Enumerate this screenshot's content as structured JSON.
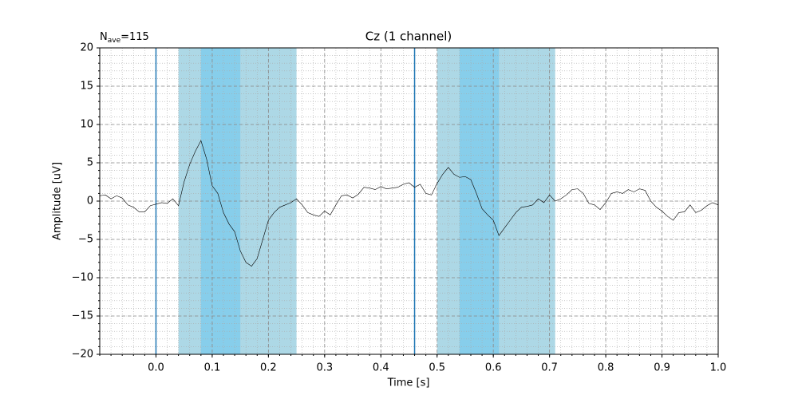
{
  "chart_data": {
    "type": "line",
    "title": "Cz (1 channel)",
    "annotation_parts": [
      "N",
      "ave",
      "=115"
    ],
    "x_label": "Time [s]",
    "y_label": "Amplitude [uV]",
    "xlim": [
      -0.1,
      1.0
    ],
    "ylim": [
      -20,
      20
    ],
    "xticks": [
      {
        "value": 0,
        "label": "0.0"
      },
      0.1,
      0.2,
      0.3,
      0.4,
      0.5,
      0.6,
      0.7,
      0.8,
      0.9,
      {
        "value": 1,
        "label": "1.0"
      }
    ],
    "yticks": [
      {
        "value": -20,
        "label": "−20"
      },
      {
        "value": -15,
        "label": "−15"
      },
      {
        "value": -10,
        "label": "−10"
      },
      {
        "value": -5,
        "label": "−5"
      },
      0,
      5,
      10,
      15,
      20
    ],
    "grid": true,
    "minor_grid": true,
    "spans": [
      {
        "start": 0.04,
        "end": 0.25,
        "color": "#add8e6"
      },
      {
        "start": 0.08,
        "end": 0.15,
        "color": "#87ceeb"
      },
      {
        "start": 0.5,
        "end": 0.71,
        "color": "#add8e6"
      },
      {
        "start": 0.54,
        "end": 0.61,
        "color": "#87ceeb"
      }
    ],
    "vlines": [
      {
        "x": 0,
        "color": "#1f77b4"
      },
      {
        "x": 0.46,
        "color": "#1f77b4"
      }
    ],
    "x": [
      -0.1,
      -0.09,
      -0.08,
      -0.07,
      -0.06,
      -0.05,
      -0.04,
      -0.03,
      -0.02,
      -0.01,
      0,
      0.01,
      0.02,
      0.03,
      0.04,
      0.05,
      0.06,
      0.07,
      0.08,
      0.09,
      0.1,
      0.11,
      0.12,
      0.13,
      0.14,
      0.15,
      0.16,
      0.17,
      0.18,
      0.19,
      0.2,
      0.21,
      0.22,
      0.23,
      0.24,
      0.25,
      0.26,
      0.27,
      0.28,
      0.29,
      0.3,
      0.31,
      0.32,
      0.33,
      0.34,
      0.35,
      0.36,
      0.37,
      0.38,
      0.39,
      0.4,
      0.41,
      0.42,
      0.43,
      0.44,
      0.45,
      0.46,
      0.47,
      0.48,
      0.49,
      0.5,
      0.51,
      0.52,
      0.53,
      0.54,
      0.55,
      0.56,
      0.57,
      0.58,
      0.59,
      0.6,
      0.61,
      0.62,
      0.63,
      0.64,
      0.65,
      0.66,
      0.67,
      0.68,
      0.69,
      0.7,
      0.71,
      0.72,
      0.73,
      0.74,
      0.75,
      0.76,
      0.77,
      0.78,
      0.79,
      0.8,
      0.81,
      0.82,
      0.83,
      0.84,
      0.85,
      0.86,
      0.87,
      0.88,
      0.89,
      0.9,
      0.91,
      0.92,
      0.93,
      0.94,
      0.95,
      0.96,
      0.97,
      0.98,
      0.99,
      1.0
    ],
    "series": [
      {
        "color": "#000000",
        "values": [
          0.7,
          0.8,
          0.3,
          0.7,
          0.4,
          -0.5,
          -0.8,
          -1.4,
          -1.4,
          -0.6,
          -0.4,
          -0.2,
          -0.3,
          0.3,
          -0.6,
          2.5,
          4.8,
          6.5,
          7.9,
          5.5,
          2.0,
          1.0,
          -1.5,
          -3.0,
          -4.0,
          -6.5,
          -8.0,
          -8.5,
          -7.5,
          -5.0,
          -2.5,
          -1.5,
          -0.8,
          -0.5,
          -0.2,
          0.3,
          -0.5,
          -1.5,
          -1.8,
          -2.0,
          -1.3,
          -1.8,
          -0.5,
          0.7,
          0.8,
          0.4,
          0.9,
          1.8,
          1.7,
          1.5,
          1.9,
          1.6,
          1.7,
          1.8,
          2.2,
          2.4,
          1.8,
          2.2,
          1.0,
          0.8,
          2.3,
          3.5,
          4.4,
          3.5,
          3.1,
          3.2,
          2.8,
          1.0,
          -1.0,
          -1.8,
          -2.5,
          -4.5,
          -3.5,
          -2.5,
          -1.5,
          -0.8,
          -0.7,
          -0.5,
          0.3,
          -0.2,
          0.8,
          0.0,
          0.3,
          0.8,
          1.5,
          1.6,
          1.0,
          -0.3,
          -0.5,
          -1.1,
          -0.2,
          1.0,
          1.2,
          1.0,
          1.5,
          1.2,
          1.6,
          1.4,
          0.0,
          -0.8,
          -1.3,
          -2.0,
          -2.5,
          -1.5,
          -1.4,
          -0.5,
          -1.5,
          -1.2,
          -0.6,
          -0.2,
          -0.5
        ]
      }
    ]
  }
}
